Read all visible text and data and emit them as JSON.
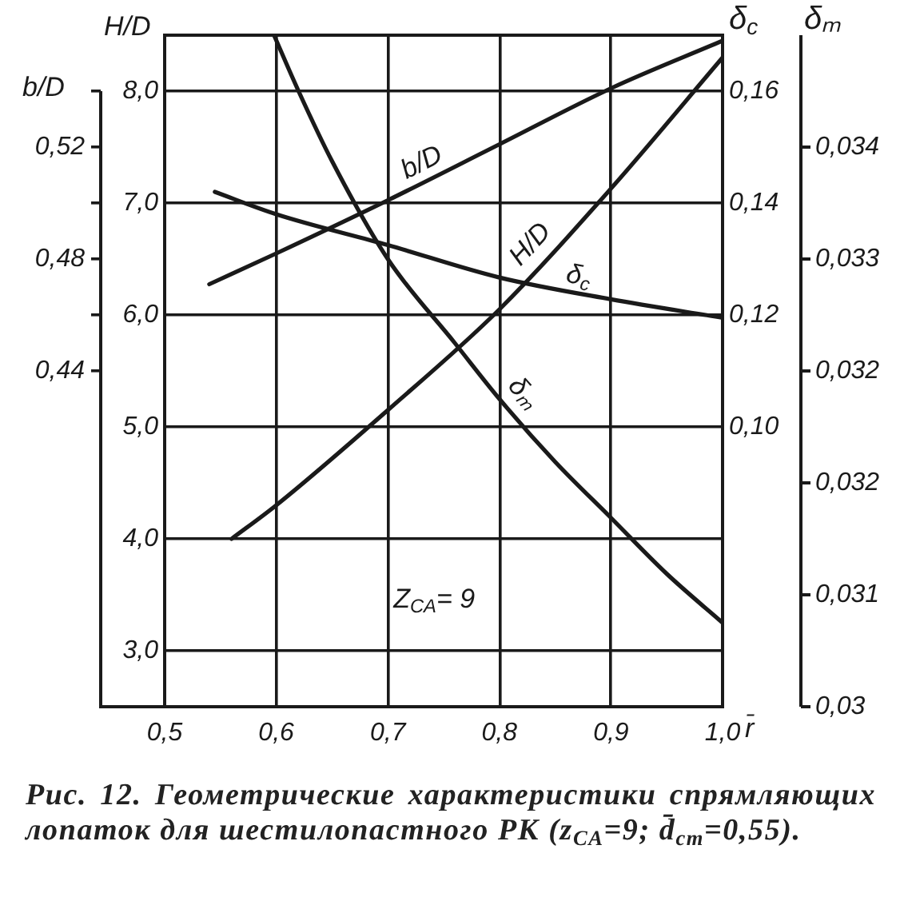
{
  "chart_data": [
    {
      "type": "line",
      "title": "Рис. 12. Геометрические характеристики спрямляющих лопаток для шестилопастного РК (z$_{CA}$=9; d̄$_{ст}$=0,55).",
      "xlabel": "r̄",
      "ylabel": "H/D",
      "y2label": "δ$_{c}$",
      "y3label": "b/D",
      "xlim": [
        0.5,
        1.0
      ],
      "xticks": [
        {
          "value": 0.5,
          "label": "0,5"
        },
        {
          "value": 0.6,
          "label": "0,6"
        },
        {
          "value": 0.7,
          "label": "0,7"
        },
        {
          "value": 0.8,
          "label": "0,8"
        },
        {
          "value": 0.9,
          "label": "0,9"
        },
        {
          "value": 1.0,
          "label": "1,0"
        }
      ],
      "ylim": [
        2.5,
        8.5
      ],
      "yticks": [
        {
          "value": 3,
          "label": "3,0"
        },
        {
          "value": 4,
          "label": "4,0"
        },
        {
          "value": 5,
          "label": "5,0"
        },
        {
          "value": 6,
          "label": "6,0"
        },
        {
          "value": 7,
          "label": "7,0"
        },
        {
          "value": 8,
          "label": "8,0"
        }
      ],
      "y2lim": [
        0.05,
        0.17
      ],
      "y2ticks": [
        {
          "value": 0.1,
          "label": "0,10"
        },
        {
          "value": 0.12,
          "label": "0,12"
        },
        {
          "value": 0.14,
          "label": "0,14"
        },
        {
          "value": 0.16,
          "label": "0,16"
        }
      ],
      "y3lim": [
        0.32,
        0.56
      ],
      "y3ticks": [
        {
          "value": 0.44,
          "label": "0,44"
        },
        {
          "value": 0.46,
          "label": null
        },
        {
          "value": 0.48,
          "label": "0,48"
        },
        {
          "value": 0.5,
          "label": null
        },
        {
          "value": 0.52,
          "label": "0,52"
        },
        {
          "value": 0.54,
          "label": null
        }
      ],
      "grid": true,
      "marker": "none",
      "line_style": "solid",
      "annotations": [
        "Z$_{CA}$= 9"
      ],
      "series": [
        {
          "name": "b/D",
          "color": "#1a1a1a",
          "axis": "y3",
          "x": [
            0.54,
            0.6,
            0.7,
            0.8,
            0.9,
            1.0
          ],
          "values": [
            0.471,
            0.482,
            0.501,
            0.521,
            0.541,
            0.558
          ]
        },
        {
          "name": "H/D",
          "color": "#1a1a1a",
          "x": [
            0.56,
            0.6,
            0.7,
            0.8,
            0.9,
            1.0
          ],
          "values": [
            4.0,
            4.3,
            5.15,
            6.05,
            7.13,
            8.3
          ]
        },
        {
          "name": "δ$_{c}$",
          "color": "#1a1a1a",
          "axis": "y2",
          "x": [
            0.545,
            0.6,
            0.7,
            0.8,
            0.9,
            1.0
          ],
          "values": [
            0.142,
            0.138,
            0.1325,
            0.1267,
            0.1228,
            0.1195
          ]
        }
      ]
    },
    {
      "type": "line",
      "ylabel": "δₘ",
      "xlim": [
        0.5,
        1.0
      ],
      "tick_labels": "y",
      "ylim": [
        0.03,
        0.0348
      ],
      "yticks": [
        {
          "value": 0.03,
          "label": "0,03"
        },
        {
          "value": 0.0308,
          "label": "0,031"
        },
        {
          "value": 0.0316,
          "label": "0,032"
        },
        {
          "value": 0.0324,
          "label": "0,032"
        },
        {
          "value": 0.0332,
          "label": "0,033"
        },
        {
          "value": 0.034,
          "label": "0,034"
        }
      ],
      "marker": "none",
      "line_style": "solid",
      "series": [
        {
          "name": "δₘ",
          "color": "#1a1a1a",
          "x": [
            0.598,
            0.62,
            0.65,
            0.7,
            0.76,
            0.8,
            0.85,
            0.9,
            0.95,
            1.0
          ],
          "values": [
            0.0348,
            0.0344,
            0.0339,
            0.0332,
            0.0326,
            0.0322,
            0.03175,
            0.03135,
            0.03095,
            0.0306
          ]
        }
      ]
    }
  ]
}
